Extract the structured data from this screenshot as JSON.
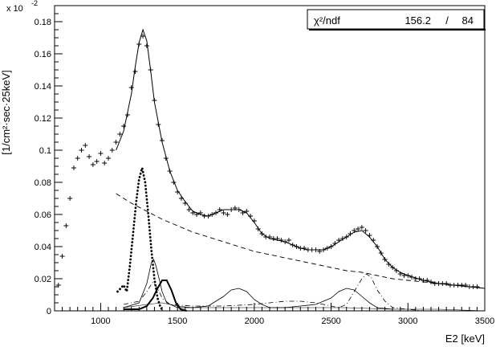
{
  "chart_data": {
    "type": "line",
    "xlabel": "E2 [keV]",
    "ylabel": "[1/cm²·sec·25keV]",
    "y_multiplier": "x 10",
    "y_multiplier_exp": "-2",
    "xlim": [
      700,
      3500
    ],
    "ylim": [
      0,
      0.19
    ],
    "x_ticks": [
      1000,
      1500,
      2000,
      2500,
      3000,
      3500
    ],
    "y_ticks": [
      0,
      0.02,
      0.04,
      0.06,
      0.08,
      0.1,
      0.12,
      0.14,
      0.16,
      0.18
    ],
    "x_tick_labels": [
      "1000",
      "1500",
      "2000",
      "2500",
      "3000",
      "3500"
    ],
    "y_tick_labels": [
      "0",
      "0.02",
      "0.04",
      "0.06",
      "0.08",
      "0.1",
      "0.12",
      "0.14",
      "0.16",
      "0.18"
    ],
    "stats": {
      "label": "χ²/ndf",
      "chi2": "156.2",
      "sep": "/",
      "ndf": "84"
    },
    "series": [
      {
        "style": "markers",
        "values": [
          [
            725,
            0.016
          ],
          [
            750,
            0.034
          ],
          [
            775,
            0.053
          ],
          [
            800,
            0.07
          ],
          [
            825,
            0.089
          ],
          [
            850,
            0.095
          ],
          [
            875,
            0.1
          ],
          [
            900,
            0.103
          ],
          [
            925,
            0.096
          ],
          [
            950,
            0.091
          ],
          [
            975,
            0.093
          ],
          [
            1000,
            0.098
          ],
          [
            1025,
            0.092
          ],
          [
            1050,
            0.095
          ],
          [
            1075,
            0.1
          ],
          [
            1100,
            0.105
          ],
          [
            1125,
            0.11
          ],
          [
            1150,
            0.115
          ],
          [
            1175,
            0.122
          ],
          [
            1200,
            0.139
          ],
          [
            1225,
            0.149
          ],
          [
            1250,
            0.166
          ],
          [
            1275,
            0.171
          ],
          [
            1300,
            0.165
          ],
          [
            1325,
            0.15
          ],
          [
            1350,
            0.131
          ],
          [
            1375,
            0.116
          ],
          [
            1400,
            0.106
          ],
          [
            1425,
            0.095
          ],
          [
            1450,
            0.087
          ],
          [
            1475,
            0.08
          ],
          [
            1500,
            0.074
          ],
          [
            1525,
            0.07
          ],
          [
            1550,
            0.067
          ],
          [
            1575,
            0.063
          ],
          [
            1600,
            0.061
          ],
          [
            1625,
            0.06
          ],
          [
            1650,
            0.061
          ],
          [
            1675,
            0.059
          ],
          [
            1700,
            0.059
          ],
          [
            1725,
            0.06
          ],
          [
            1750,
            0.061
          ],
          [
            1775,
            0.063
          ],
          [
            1800,
            0.061
          ],
          [
            1825,
            0.06
          ],
          [
            1850,
            0.063
          ],
          [
            1875,
            0.064
          ],
          [
            1900,
            0.063
          ],
          [
            1925,
            0.061
          ],
          [
            1950,
            0.062
          ],
          [
            1975,
            0.059
          ],
          [
            2000,
            0.056
          ],
          [
            2025,
            0.051
          ],
          [
            2050,
            0.048
          ],
          [
            2075,
            0.046
          ],
          [
            2100,
            0.046
          ],
          [
            2125,
            0.045
          ],
          [
            2150,
            0.045
          ],
          [
            2175,
            0.044
          ],
          [
            2200,
            0.043
          ],
          [
            2225,
            0.044
          ],
          [
            2250,
            0.041
          ],
          [
            2275,
            0.04
          ],
          [
            2300,
            0.039
          ],
          [
            2325,
            0.039
          ],
          [
            2350,
            0.038
          ],
          [
            2375,
            0.038
          ],
          [
            2400,
            0.038
          ],
          [
            2425,
            0.037
          ],
          [
            2450,
            0.038
          ],
          [
            2475,
            0.039
          ],
          [
            2500,
            0.04
          ],
          [
            2525,
            0.042
          ],
          [
            2550,
            0.044
          ],
          [
            2575,
            0.045
          ],
          [
            2600,
            0.046
          ],
          [
            2625,
            0.048
          ],
          [
            2650,
            0.05
          ],
          [
            2675,
            0.051
          ],
          [
            2700,
            0.052
          ],
          [
            2725,
            0.05
          ],
          [
            2750,
            0.047
          ],
          [
            2775,
            0.044
          ],
          [
            2800,
            0.04
          ],
          [
            2825,
            0.036
          ],
          [
            2850,
            0.032
          ],
          [
            2875,
            0.029
          ],
          [
            2900,
            0.027
          ],
          [
            2925,
            0.025
          ],
          [
            2950,
            0.023
          ],
          [
            2975,
            0.022
          ],
          [
            3000,
            0.022
          ],
          [
            3025,
            0.021
          ],
          [
            3050,
            0.02
          ],
          [
            3075,
            0.02
          ],
          [
            3100,
            0.019
          ],
          [
            3125,
            0.019
          ],
          [
            3150,
            0.018
          ],
          [
            3175,
            0.017
          ],
          [
            3200,
            0.017
          ],
          [
            3225,
            0.017
          ],
          [
            3250,
            0.017
          ],
          [
            3275,
            0.016
          ],
          [
            3300,
            0.016
          ],
          [
            3325,
            0.016
          ],
          [
            3350,
            0.016
          ],
          [
            3375,
            0.016
          ],
          [
            3400,
            0.015
          ],
          [
            3425,
            0.015
          ],
          [
            3450,
            0.015
          ]
        ]
      },
      {
        "style": "solid",
        "values": [
          [
            1100,
            0.1
          ],
          [
            1150,
            0.112
          ],
          [
            1200,
            0.135
          ],
          [
            1225,
            0.152
          ],
          [
            1250,
            0.167
          ],
          [
            1275,
            0.175
          ],
          [
            1300,
            0.168
          ],
          [
            1325,
            0.15
          ],
          [
            1350,
            0.13
          ],
          [
            1400,
            0.105
          ],
          [
            1450,
            0.087
          ],
          [
            1500,
            0.075
          ],
          [
            1550,
            0.068
          ],
          [
            1600,
            0.062
          ],
          [
            1650,
            0.06
          ],
          [
            1700,
            0.059
          ],
          [
            1750,
            0.061
          ],
          [
            1800,
            0.063
          ],
          [
            1850,
            0.063
          ],
          [
            1900,
            0.063
          ],
          [
            1950,
            0.061
          ],
          [
            2000,
            0.055
          ],
          [
            2050,
            0.048
          ],
          [
            2100,
            0.045
          ],
          [
            2150,
            0.044
          ],
          [
            2200,
            0.043
          ],
          [
            2250,
            0.041
          ],
          [
            2300,
            0.039
          ],
          [
            2350,
            0.038
          ],
          [
            2400,
            0.038
          ],
          [
            2450,
            0.038
          ],
          [
            2500,
            0.04
          ],
          [
            2550,
            0.043
          ],
          [
            2600,
            0.046
          ],
          [
            2650,
            0.049
          ],
          [
            2700,
            0.05
          ],
          [
            2750,
            0.046
          ],
          [
            2800,
            0.04
          ],
          [
            2850,
            0.032
          ],
          [
            2900,
            0.027
          ],
          [
            2950,
            0.024
          ],
          [
            3000,
            0.022
          ],
          [
            3100,
            0.019
          ],
          [
            3200,
            0.017
          ],
          [
            3300,
            0.016
          ],
          [
            3400,
            0.015
          ],
          [
            3500,
            0.014
          ]
        ]
      },
      {
        "style": "dashed",
        "values": [
          [
            1100,
            0.073
          ],
          [
            1200,
            0.067
          ],
          [
            1300,
            0.062
          ],
          [
            1400,
            0.057
          ],
          [
            1500,
            0.053
          ],
          [
            1600,
            0.049
          ],
          [
            1700,
            0.046
          ],
          [
            1800,
            0.043
          ],
          [
            1900,
            0.04
          ],
          [
            2000,
            0.037
          ],
          [
            2100,
            0.035
          ],
          [
            2200,
            0.033
          ],
          [
            2300,
            0.031
          ],
          [
            2400,
            0.029
          ],
          [
            2500,
            0.027
          ],
          [
            2600,
            0.025
          ],
          [
            2700,
            0.024
          ],
          [
            2800,
            0.022
          ],
          [
            2900,
            0.02
          ],
          [
            3000,
            0.019
          ],
          [
            3100,
            0.018
          ],
          [
            3200,
            0.017
          ],
          [
            3300,
            0.016
          ],
          [
            3400,
            0.015
          ],
          [
            3500,
            0.014
          ]
        ]
      },
      {
        "style": "dotted-bold",
        "values": [
          [
            1110,
            0.012
          ],
          [
            1130,
            0.014
          ],
          [
            1150,
            0.016
          ],
          [
            1170,
            0.012
          ],
          [
            1190,
            0.028
          ],
          [
            1210,
            0.047
          ],
          [
            1230,
            0.067
          ],
          [
            1250,
            0.082
          ],
          [
            1270,
            0.089
          ],
          [
            1290,
            0.08
          ],
          [
            1310,
            0.06
          ],
          [
            1330,
            0.038
          ],
          [
            1350,
            0.02
          ],
          [
            1370,
            0.008
          ],
          [
            1390,
            0.002
          ],
          [
            1410,
            0
          ]
        ]
      },
      {
        "style": "solid-bold",
        "values": [
          [
            1150,
            0.001
          ],
          [
            1250,
            0.001
          ],
          [
            1300,
            0.003
          ],
          [
            1340,
            0.008
          ],
          [
            1370,
            0.014
          ],
          [
            1400,
            0.019
          ],
          [
            1430,
            0.019
          ],
          [
            1460,
            0.013
          ],
          [
            1490,
            0.005
          ],
          [
            1520,
            0.001
          ],
          [
            1560,
            0
          ]
        ]
      },
      {
        "style": "solid-thin",
        "values": [
          [
            1150,
            0.002
          ],
          [
            1250,
            0.005
          ],
          [
            1300,
            0.017
          ],
          [
            1330,
            0.03
          ],
          [
            1345,
            0.032
          ],
          [
            1360,
            0.028
          ],
          [
            1380,
            0.02
          ],
          [
            1400,
            0.012
          ],
          [
            1430,
            0.005
          ],
          [
            1500,
            0.002
          ],
          [
            1600,
            0.002
          ],
          [
            1700,
            0.003
          ],
          [
            1750,
            0.006
          ],
          [
            1800,
            0.009
          ],
          [
            1850,
            0.013
          ],
          [
            1900,
            0.014
          ],
          [
            1950,
            0.012
          ],
          [
            2000,
            0.007
          ],
          [
            2050,
            0.004
          ],
          [
            2100,
            0.002
          ],
          [
            2200,
            0.002
          ],
          [
            2300,
            0.003
          ],
          [
            2400,
            0.004
          ],
          [
            2500,
            0.008
          ],
          [
            2550,
            0.012
          ],
          [
            2600,
            0.014
          ],
          [
            2650,
            0.013
          ],
          [
            2700,
            0.009
          ],
          [
            2750,
            0.005
          ],
          [
            2800,
            0.002
          ],
          [
            2900,
            0.001
          ]
        ]
      },
      {
        "style": "dash-dot",
        "values": [
          [
            1150,
            0.004
          ],
          [
            1250,
            0.006
          ],
          [
            1300,
            0.012
          ],
          [
            1340,
            0.018
          ],
          [
            1370,
            0.014
          ],
          [
            1400,
            0.008
          ],
          [
            1450,
            0.004
          ],
          [
            1600,
            0.003
          ],
          [
            1800,
            0.003
          ],
          [
            2000,
            0.004
          ],
          [
            2100,
            0.005
          ],
          [
            2200,
            0.006
          ],
          [
            2300,
            0.006
          ],
          [
            2400,
            0.005
          ],
          [
            2500,
            0.003
          ],
          [
            2550,
            0.002
          ],
          [
            2600,
            0.004
          ],
          [
            2650,
            0.012
          ],
          [
            2700,
            0.02
          ],
          [
            2730,
            0.023
          ],
          [
            2760,
            0.021
          ],
          [
            2800,
            0.013
          ],
          [
            2850,
            0.006
          ],
          [
            2900,
            0.002
          ],
          [
            3000,
            0.001
          ],
          [
            3100,
            0
          ]
        ]
      },
      {
        "style": "solid-hair",
        "values": [
          [
            1150,
            0.002
          ],
          [
            1300,
            0.004
          ],
          [
            1400,
            0.005
          ],
          [
            1500,
            0.003
          ],
          [
            1600,
            0.002
          ],
          [
            1800,
            0.002
          ],
          [
            2000,
            0.002
          ],
          [
            2300,
            0.002
          ],
          [
            2600,
            0.002
          ],
          [
            2900,
            0.001
          ],
          [
            3200,
            0.001
          ],
          [
            3500,
            0
          ]
        ]
      }
    ]
  }
}
